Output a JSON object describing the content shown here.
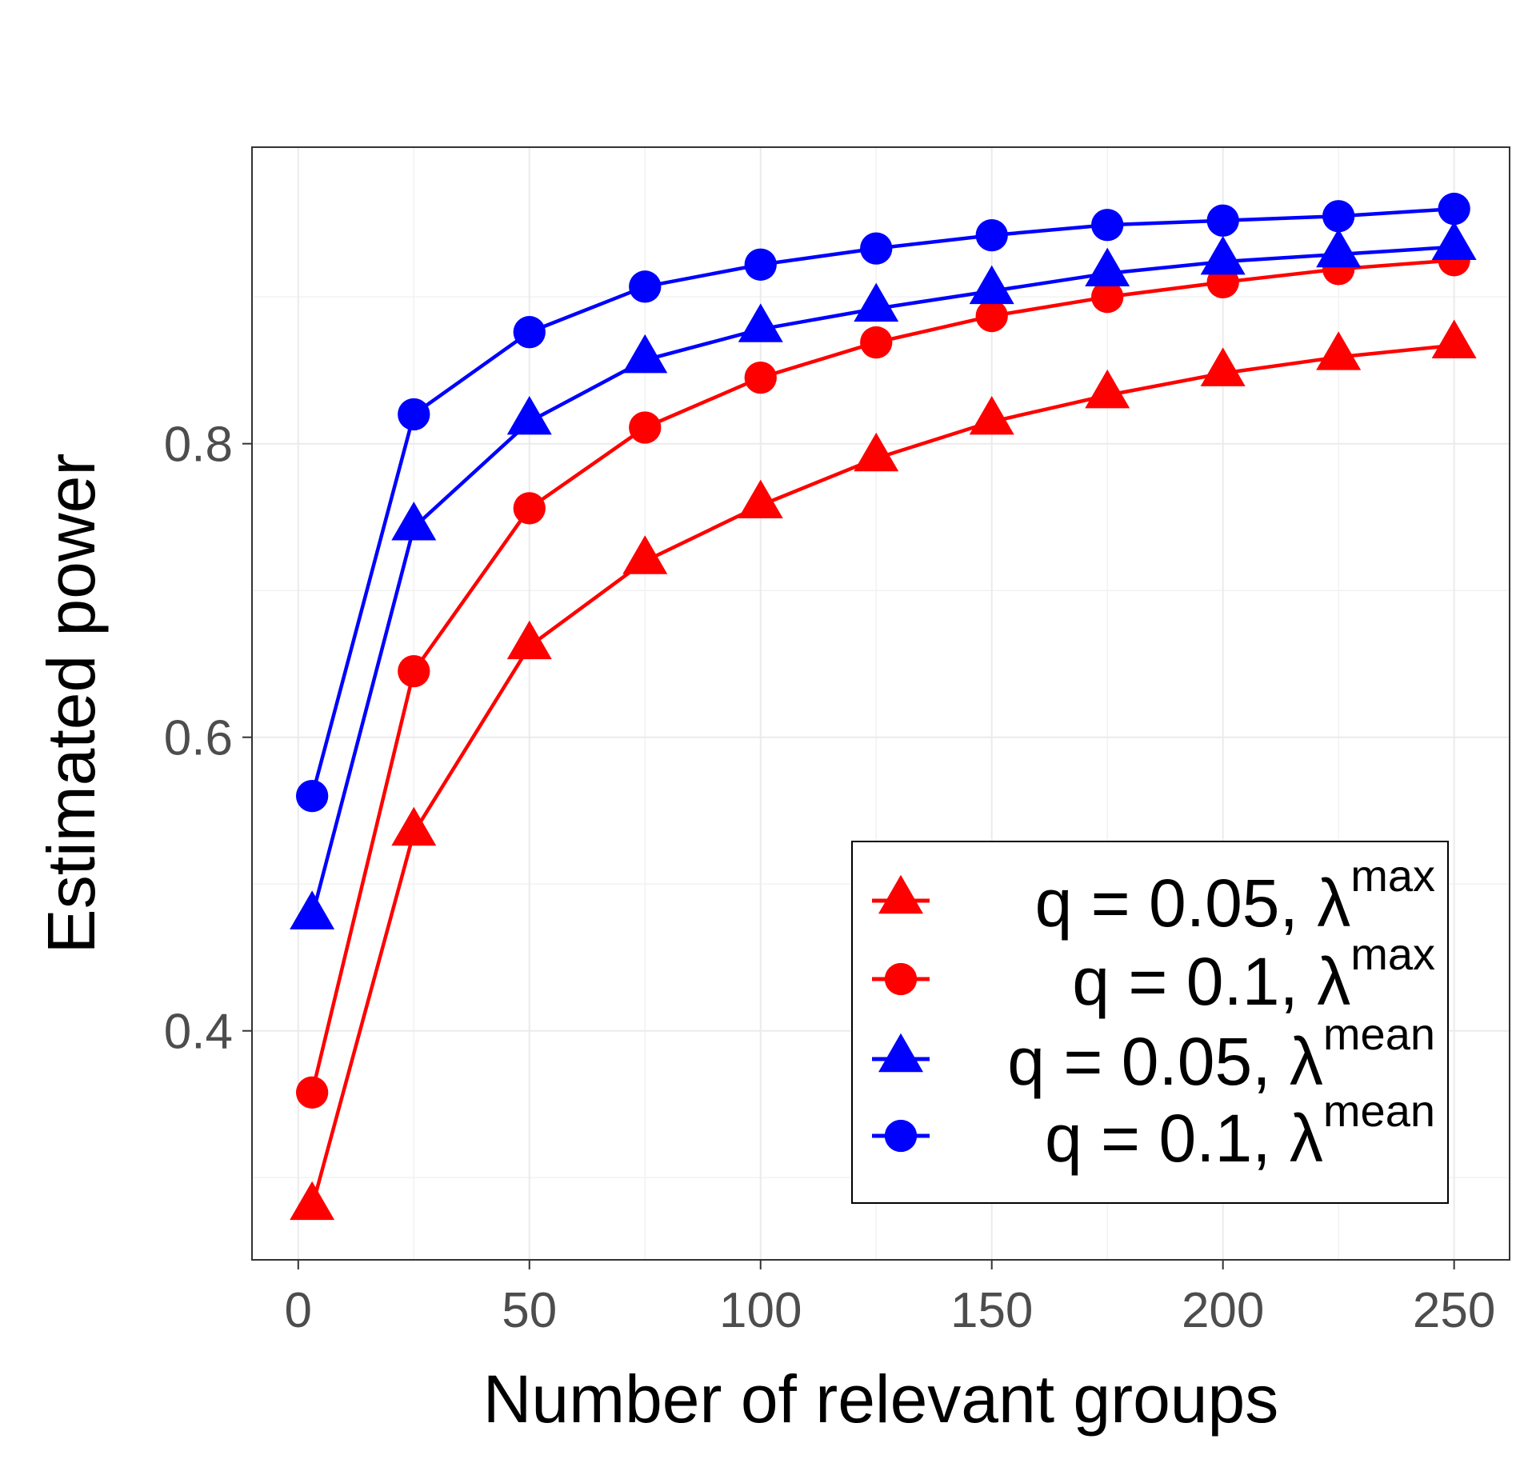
{
  "chart_data": {
    "type": "line",
    "title": "",
    "xlabel": "Number of relevant groups",
    "ylabel": "Estimated power",
    "xlim": [
      -10,
      262
    ],
    "ylim": [
      0.244,
      1.002
    ],
    "xticks": [
      0,
      50,
      100,
      150,
      200,
      250
    ],
    "xtick_labels": [
      "0",
      "50",
      "100",
      "150",
      "200",
      "250"
    ],
    "yticks": [
      0.4,
      0.6,
      0.8
    ],
    "ytick_labels": [
      "0.4",
      "0.6",
      "0.8"
    ],
    "grid": true,
    "legend_position": "bottom-right",
    "x": [
      3,
      25,
      50,
      75,
      100,
      125,
      150,
      175,
      200,
      225,
      250
    ],
    "series": [
      {
        "name": "q = 0.05,  λ",
        "sup": "max",
        "color": "#ff0000",
        "marker": "triangle",
        "values": [
          0.28,
          0.535,
          0.662,
          0.72,
          0.758,
          0.79,
          0.815,
          0.833,
          0.848,
          0.859,
          0.867
        ]
      },
      {
        "name": " q = 0.1,   λ",
        "sup": "max",
        "color": "#ff0000",
        "marker": "circle",
        "values": [
          0.358,
          0.645,
          0.756,
          0.811,
          0.845,
          0.869,
          0.887,
          0.9,
          0.91,
          0.919,
          0.925
        ]
      },
      {
        "name": "q = 0.05, λ",
        "sup": "mean",
        "color": "#0000ff",
        "marker": "triangle",
        "values": [
          0.478,
          0.743,
          0.815,
          0.857,
          0.878,
          0.892,
          0.904,
          0.916,
          0.924,
          0.929,
          0.934
        ]
      },
      {
        "name": " q = 0.1,  λ",
        "sup": "mean",
        "color": "#0000ff",
        "marker": "circle",
        "values": [
          0.56,
          0.82,
          0.876,
          0.907,
          0.922,
          0.933,
          0.942,
          0.949,
          0.952,
          0.955,
          0.96
        ]
      }
    ]
  }
}
